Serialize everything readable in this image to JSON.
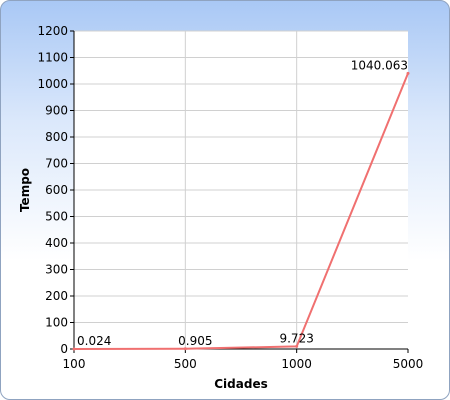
{
  "chart_data": {
    "type": "line",
    "xlabel": "Cidades",
    "ylabel": "Tempo",
    "categories": [
      "100",
      "500",
      "1000",
      "5000"
    ],
    "series": [
      {
        "values": [
          0.024,
          0.905,
          9.723,
          1040.063
        ],
        "labels": [
          "0.024",
          "0.905",
          "9.723",
          "1040.063"
        ],
        "color": "#f07070"
      }
    ],
    "ylim": [
      0,
      1200
    ],
    "yticks": [
      "0",
      "100",
      "200",
      "300",
      "400",
      "500",
      "600",
      "700",
      "800",
      "900",
      "1000",
      "1100",
      "1200"
    ],
    "grid": true,
    "legend": "none"
  },
  "colors": {
    "frame_border": "#8fa3c0",
    "gradient_top": "#a9c8f5",
    "plot_background": "#ffffff",
    "grid": "#d0d0d0",
    "axis": "#000000"
  }
}
